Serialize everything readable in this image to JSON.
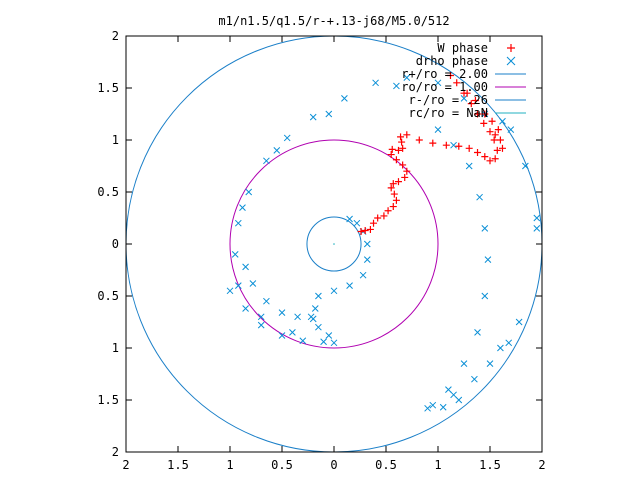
{
  "chart_data": {
    "type": "scatter",
    "title": "m1/n1.5/q1.5/r-+.13-j68/M5.0/512",
    "xlabel": "",
    "ylabel": "",
    "xlim": [
      -2,
      2
    ],
    "ylim": [
      -2,
      2
    ],
    "x_tick_labels": [
      "2",
      "1.5",
      "1",
      "0.5",
      "0",
      "0.5",
      "1",
      "1.5",
      "2"
    ],
    "y_tick_labels": [
      "2",
      "1.5",
      "1",
      "0.5",
      "0",
      "0.5",
      "1",
      "1.5",
      "2"
    ],
    "grid": false,
    "legend_position": "top-right",
    "colors": {
      "w_phase": "#ff0000",
      "drho_phase": "#0a8fd6",
      "r_plus": "#1a7fc8",
      "r_o": "#b000b0",
      "r_minus": "#1a7fc8",
      "r_c": "#20b0c0",
      "axis": "#000000"
    },
    "legend": [
      {
        "key": "w",
        "label": "W phase",
        "marker": "+"
      },
      {
        "key": "drho",
        "label": "drho phase",
        "marker": "x"
      },
      {
        "key": "rplus",
        "label": "r+/ro = 2.00",
        "marker": "line"
      },
      {
        "key": "ro",
        "label": "ro/ro = 1.00",
        "marker": "line"
      },
      {
        "key": "rminus",
        "label": "r-/ro = .26",
        "marker": "line"
      },
      {
        "key": "rc",
        "label": "rc/ro = NaN",
        "marker": "line"
      }
    ],
    "circles": [
      {
        "name": "r+/ro",
        "r": 2.0
      },
      {
        "name": "ro/ro",
        "r": 1.0
      },
      {
        "name": "r-/ro",
        "r": 0.26
      }
    ],
    "series": [
      {
        "name": "W phase",
        "points": [
          [
            0.26,
            0.12
          ],
          [
            0.3,
            0.13
          ],
          [
            0.35,
            0.14
          ],
          [
            0.38,
            0.2
          ],
          [
            0.42,
            0.25
          ],
          [
            0.48,
            0.27
          ],
          [
            0.52,
            0.32
          ],
          [
            0.57,
            0.36
          ],
          [
            0.6,
            0.42
          ],
          [
            0.58,
            0.48
          ],
          [
            0.55,
            0.54
          ],
          [
            0.57,
            0.58
          ],
          [
            0.62,
            0.6
          ],
          [
            0.68,
            0.64
          ],
          [
            0.7,
            0.7
          ],
          [
            0.66,
            0.76
          ],
          [
            0.6,
            0.81
          ],
          [
            0.55,
            0.86
          ],
          [
            0.56,
            0.91
          ],
          [
            0.62,
            0.9
          ],
          [
            0.66,
            0.92
          ],
          [
            0.65,
            0.98
          ],
          [
            0.64,
            1.03
          ],
          [
            0.7,
            1.05
          ],
          [
            0.82,
            1.0
          ],
          [
            0.95,
            0.97
          ],
          [
            1.08,
            0.95
          ],
          [
            1.2,
            0.94
          ],
          [
            1.3,
            0.92
          ],
          [
            1.38,
            0.88
          ],
          [
            1.45,
            0.84
          ],
          [
            1.5,
            0.8
          ],
          [
            1.55,
            0.82
          ],
          [
            1.57,
            0.9
          ],
          [
            1.54,
            1.0
          ],
          [
            1.5,
            1.08
          ],
          [
            1.44,
            1.16
          ],
          [
            1.38,
            1.25
          ],
          [
            1.32,
            1.35
          ],
          [
            1.25,
            1.45
          ],
          [
            1.18,
            1.55
          ],
          [
            1.12,
            1.62
          ],
          [
            1.28,
            1.45
          ],
          [
            1.36,
            1.38
          ],
          [
            1.45,
            1.25
          ],
          [
            1.52,
            1.18
          ],
          [
            1.58,
            1.1
          ],
          [
            1.62,
            0.92
          ],
          [
            1.6,
            1.0
          ],
          [
            1.55,
            1.05
          ]
        ]
      },
      {
        "name": "drho phase",
        "points": [
          [
            1.45,
            1.25
          ],
          [
            1.25,
            1.4
          ],
          [
            1.0,
            1.55
          ],
          [
            0.7,
            1.6
          ],
          [
            0.4,
            1.55
          ],
          [
            0.1,
            1.4
          ],
          [
            -0.2,
            1.22
          ],
          [
            -0.45,
            1.02
          ],
          [
            -0.65,
            0.8
          ],
          [
            -0.82,
            0.5
          ],
          [
            -0.92,
            0.2
          ],
          [
            -0.95,
            -0.1
          ],
          [
            -0.92,
            -0.4
          ],
          [
            -0.85,
            -0.62
          ],
          [
            -0.7,
            -0.78
          ],
          [
            -0.5,
            -0.88
          ],
          [
            -0.3,
            -0.93
          ],
          [
            -0.1,
            -0.94
          ],
          [
            0.0,
            -0.95
          ],
          [
            -0.05,
            -0.88
          ],
          [
            -0.15,
            -0.8
          ],
          [
            -0.2,
            -0.72
          ],
          [
            -0.18,
            -0.62
          ],
          [
            -0.15,
            -0.5
          ],
          [
            0.0,
            -0.45
          ],
          [
            0.15,
            -0.4
          ],
          [
            0.28,
            -0.3
          ],
          [
            0.32,
            -0.15
          ],
          [
            0.32,
            0.0
          ],
          [
            0.28,
            0.12
          ],
          [
            0.22,
            0.2
          ],
          [
            0.15,
            0.24
          ],
          [
            -0.85,
            -0.22
          ],
          [
            -0.78,
            -0.38
          ],
          [
            -0.65,
            -0.55
          ],
          [
            -0.5,
            -0.66
          ],
          [
            -0.35,
            -0.7
          ],
          [
            -0.22,
            -0.7
          ],
          [
            -1.0,
            -0.45
          ],
          [
            -0.7,
            -0.7
          ],
          [
            -0.4,
            -0.85
          ],
          [
            1.0,
            1.1
          ],
          [
            1.15,
            0.95
          ],
          [
            1.3,
            0.75
          ],
          [
            1.4,
            0.45
          ],
          [
            1.45,
            0.15
          ],
          [
            1.48,
            -0.15
          ],
          [
            1.45,
            -0.5
          ],
          [
            1.38,
            -0.85
          ],
          [
            1.25,
            -1.15
          ],
          [
            1.1,
            -1.4
          ],
          [
            0.95,
            -1.55
          ],
          [
            1.15,
            -1.45
          ],
          [
            1.35,
            -1.3
          ],
          [
            1.5,
            -1.15
          ],
          [
            1.6,
            -1.0
          ],
          [
            1.68,
            -0.95
          ],
          [
            1.78,
            -0.75
          ],
          [
            1.84,
            0.75
          ],
          [
            1.95,
            0.15
          ],
          [
            1.95,
            0.25
          ],
          [
            1.62,
            1.18
          ],
          [
            1.7,
            1.1
          ],
          [
            1.2,
            -1.5
          ],
          [
            1.05,
            -1.57
          ],
          [
            0.9,
            -1.58
          ],
          [
            0.6,
            1.52
          ],
          [
            -0.05,
            1.25
          ],
          [
            -0.55,
            0.9
          ],
          [
            -0.88,
            0.35
          ]
        ]
      }
    ]
  }
}
